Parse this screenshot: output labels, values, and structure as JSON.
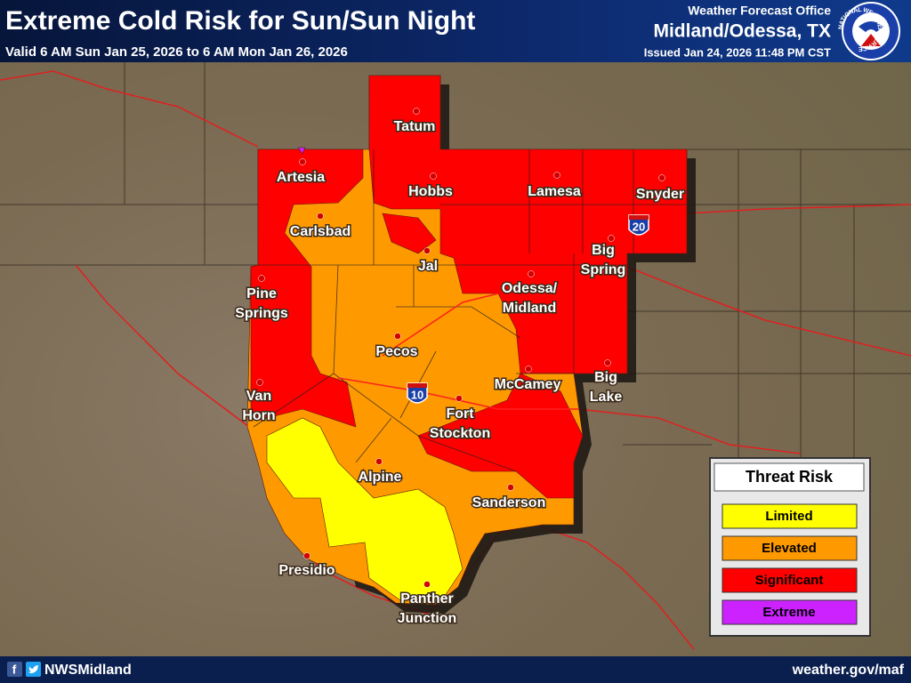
{
  "header": {
    "title": "Extreme Cold Risk for Sun/Sun Night",
    "subtitle": "Valid 6 AM Sun Jan 25, 2026 to 6 AM Mon Jan 26, 2026",
    "office_label": "Weather Forecast Office",
    "office": "Midland/Odessa, TX",
    "issued": "Issued Jan 24, 2026 11:48 PM CST"
  },
  "logo": {
    "text": "NATIONAL WEATHER SERVICE"
  },
  "highways": [
    {
      "number": 20
    },
    {
      "number": 10
    }
  ],
  "legend": {
    "title": "Threat Risk",
    "items": [
      {
        "label": "Limited",
        "color": "#ffff00"
      },
      {
        "label": "Elevated",
        "color": "#ff9900"
      },
      {
        "label": "Significant",
        "color": "#ff0000"
      },
      {
        "label": "Extreme",
        "color": "#cc22ff"
      }
    ]
  },
  "cities": [
    {
      "lines": [
        "Tatum"
      ]
    },
    {
      "lines": [
        "Artesia"
      ]
    },
    {
      "lines": [
        "Hobbs"
      ]
    },
    {
      "lines": [
        "Lamesa"
      ]
    },
    {
      "lines": [
        "Snyder"
      ]
    },
    {
      "lines": [
        "Carlsbad"
      ]
    },
    {
      "lines": [
        "Jal"
      ]
    },
    {
      "lines": [
        "Big",
        "Spring"
      ]
    },
    {
      "lines": [
        "Odessa/",
        "Midland"
      ]
    },
    {
      "lines": [
        "Pine",
        "Springs"
      ]
    },
    {
      "lines": [
        "Pecos"
      ]
    },
    {
      "lines": [
        "Van",
        "Horn"
      ]
    },
    {
      "lines": [
        "McCamey"
      ]
    },
    {
      "lines": [
        "Big",
        "Lake"
      ]
    },
    {
      "lines": [
        "Fort",
        "Stockton"
      ]
    },
    {
      "lines": [
        "Alpine"
      ]
    },
    {
      "lines": [
        "Sanderson"
      ]
    },
    {
      "lines": [
        "Presidio"
      ]
    },
    {
      "lines": [
        "Panther",
        "Junction"
      ]
    }
  ],
  "footer": {
    "handle": "NWSMidland",
    "url": "weather.gov/maf"
  }
}
